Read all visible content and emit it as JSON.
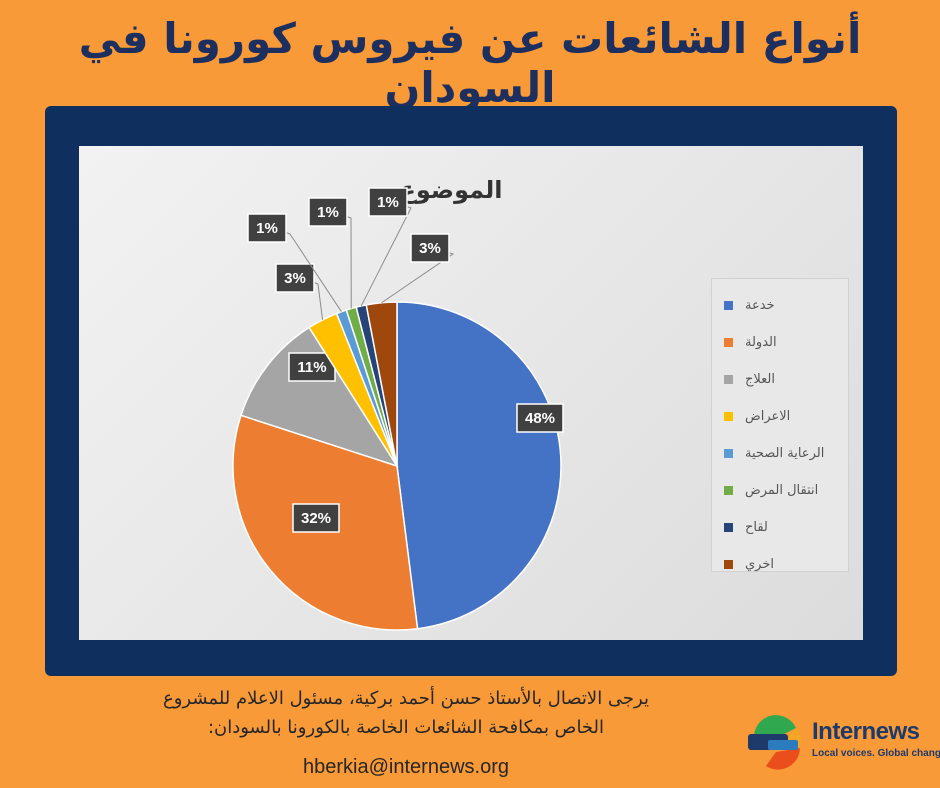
{
  "page": {
    "headline": "أنواع الشائعات عن فيروس كورونا في السودان",
    "footer_line1": "يرجى الاتصال بالأستاذ حسن أحمد بركية، مسئول الاعلام للمشروع",
    "footer_line2": "الخاص بمكافحة الشائعات الخاصة بالكورونا بالسودان:",
    "footer_email": "hberkia@internews.org",
    "logo_name": "Internews",
    "logo_tagline": "Local voices. Global change."
  },
  "colors": {
    "background": "#f99a38",
    "frame": "#0f2f5e",
    "headline": "#1c2f5e"
  },
  "chart_data": {
    "type": "pie",
    "title": "الموضوع",
    "legend_position": "right",
    "unit": "%",
    "slices": [
      {
        "label": "خدعة",
        "value": 48,
        "display": "48%",
        "color": "#4472c4"
      },
      {
        "label": "الدولة",
        "value": 32,
        "display": "32%",
        "color": "#ed7d31"
      },
      {
        "label": "العلاج",
        "value": 11,
        "display": "11%",
        "color": "#a5a5a5"
      },
      {
        "label": "الاعراض",
        "value": 3,
        "display": "3%",
        "color": "#ffc000"
      },
      {
        "label": "الرعاية الصحية",
        "value": 1,
        "display": "1%",
        "color": "#5b9bd5"
      },
      {
        "label": "انتقال المرض",
        "value": 1,
        "display": "1%",
        "color": "#70ad47"
      },
      {
        "label": "لقاح",
        "value": 1,
        "display": "1%",
        "color": "#264478"
      },
      {
        "label": "اخري",
        "value": 3,
        "display": "3%",
        "color": "#9e480e"
      }
    ]
  }
}
